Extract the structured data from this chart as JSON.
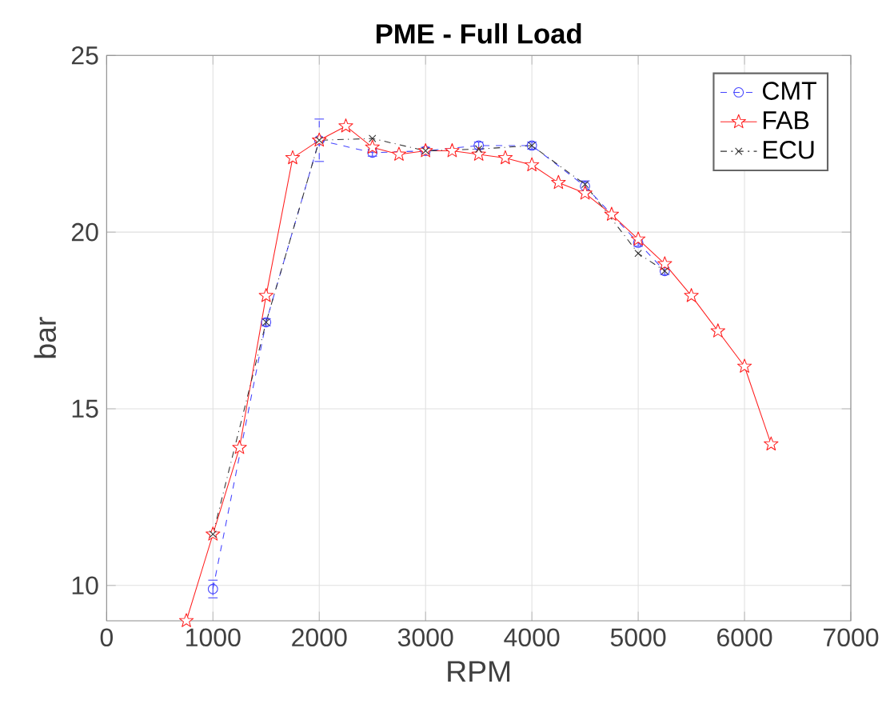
{
  "chart_data": {
    "type": "line",
    "title": "PME - Full Load",
    "xlabel": "RPM",
    "ylabel": "bar",
    "xlim": [
      0,
      7000
    ],
    "ylim": [
      9,
      25
    ],
    "xticks": [
      0,
      1000,
      2000,
      3000,
      4000,
      5000,
      6000,
      7000
    ],
    "yticks": [
      10,
      15,
      20,
      25
    ],
    "grid": true,
    "legend": "top right",
    "series": [
      {
        "name": "CMT",
        "color": "#4444ff",
        "marker": "circle",
        "line_style": "dashed",
        "x": [
          1000,
          1500,
          2000,
          2500,
          3000,
          3500,
          4000,
          4500,
          5000,
          5250
        ],
        "values": [
          9.9,
          17.45,
          22.6,
          22.25,
          22.3,
          22.45,
          22.45,
          21.3,
          19.7,
          18.9
        ],
        "errors": [
          0.25,
          0.1,
          0.6,
          0.1,
          0.1,
          0.1,
          0.1,
          0.15,
          0.1,
          0.1
        ]
      },
      {
        "name": "FAB",
        "color": "#ff2020",
        "marker": "star",
        "line_style": "solid",
        "x": [
          750,
          1000,
          1250,
          1500,
          1750,
          2000,
          2250,
          2500,
          2750,
          3000,
          3250,
          3500,
          3750,
          4000,
          4250,
          4500,
          4750,
          5000,
          5250,
          5500,
          5750,
          6000,
          6250
        ],
        "values": [
          9.0,
          11.45,
          13.9,
          18.2,
          22.1,
          22.6,
          23.0,
          22.4,
          22.2,
          22.3,
          22.3,
          22.2,
          22.1,
          21.9,
          21.4,
          21.1,
          20.5,
          19.8,
          19.1,
          18.2,
          17.2,
          16.2,
          14.0
        ]
      },
      {
        "name": "ECU",
        "color": "#333333",
        "marker": "cross",
        "line_style": "dashdot",
        "x": [
          1000,
          1500,
          2000,
          2500,
          3000,
          3500,
          4000,
          4500,
          5000,
          5250
        ],
        "values": [
          11.45,
          17.45,
          22.6,
          22.65,
          22.3,
          22.35,
          22.45,
          21.35,
          19.4,
          18.9
        ]
      }
    ]
  }
}
